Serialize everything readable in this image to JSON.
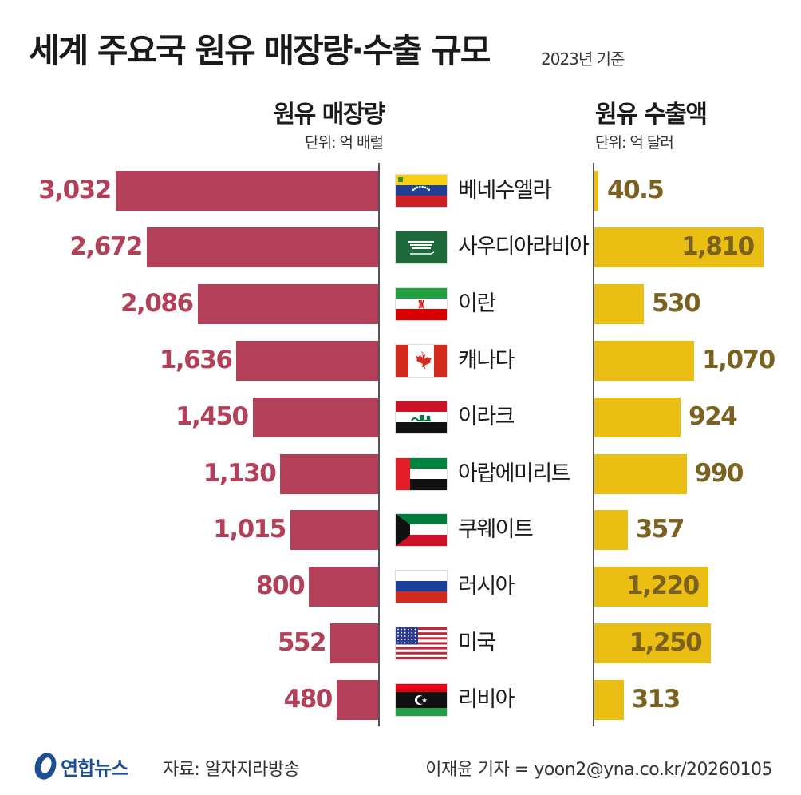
{
  "title": "세계 주요국 원유 매장량·수출 규모",
  "basis": "2023년 기준",
  "chart_data": {
    "type": "bar",
    "categories": [
      "베네수엘라",
      "사우디아라비아",
      "이란",
      "캐나다",
      "이라크",
      "아랍에미리트",
      "쿠웨이트",
      "러시아",
      "미국",
      "리비아"
    ],
    "series": [
      {
        "name": "원유 매장량",
        "unit": "단위: 억 배럴",
        "values": [
          3032,
          2672,
          2086,
          1636,
          1450,
          1130,
          1015,
          800,
          552,
          480
        ],
        "labels": [
          "3,032",
          "2,672",
          "2,086",
          "1,636",
          "1,450",
          "1,130",
          "1,015",
          "800",
          "552",
          "480"
        ],
        "color": "#b43f58",
        "xlim": [
          0,
          3500
        ]
      },
      {
        "name": "원유 수출액",
        "unit": "단위: 억 달러",
        "values": [
          40.5,
          1810,
          530,
          1070,
          924,
          990,
          357,
          1220,
          1250,
          313
        ],
        "labels": [
          "40.5",
          "1,810",
          "530",
          "1,070",
          "924",
          "990",
          "357",
          "1,220",
          "1,250",
          "313"
        ],
        "color": "#ebbe14",
        "xlim": [
          0,
          1950
        ]
      }
    ]
  },
  "flags": [
    "venezuela-flag",
    "saudi-arabia-flag",
    "iran-flag",
    "canada-flag",
    "iraq-flag",
    "uae-flag",
    "kuwait-flag",
    "russia-flag",
    "usa-flag",
    "libya-flag"
  ],
  "footer": {
    "logo": "연합뉴스",
    "source": "자료: 알자지라방송",
    "credit": "이재윤 기자 = yoon2@yna.co.kr/20260105"
  }
}
